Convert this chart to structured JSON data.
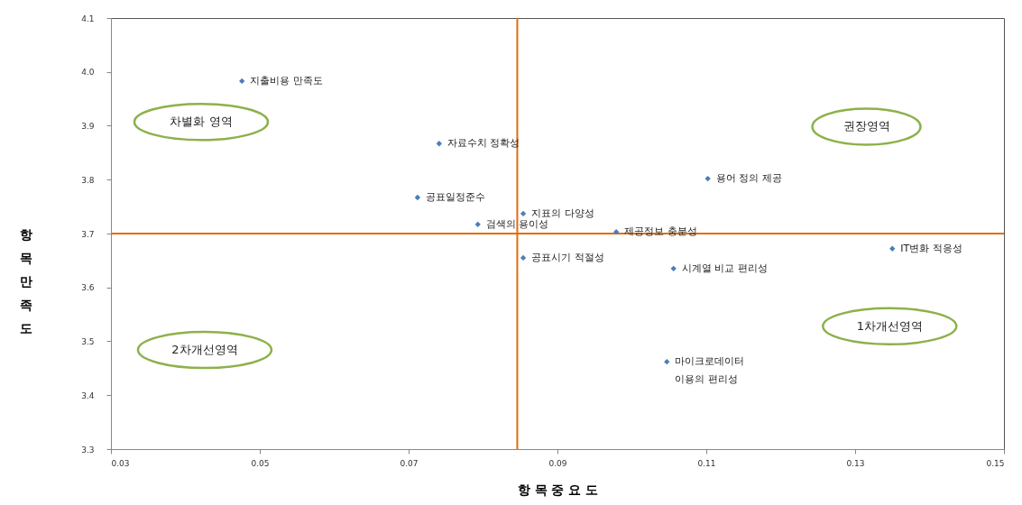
{
  "chart_data": {
    "type": "scatter",
    "xlabel": "항 목 중 요 도",
    "ylabel": "항목만족도",
    "xlim": [
      0.03,
      0.15
    ],
    "xticks": [
      0.03,
      0.05,
      0.07,
      0.09,
      0.11,
      0.13,
      0.15
    ],
    "ylim": [
      3.3,
      4.1
    ],
    "yticks": [
      3.3,
      3.4,
      3.5,
      3.6,
      3.7,
      3.8,
      3.9,
      {
        "value": 4,
        "label": "4.0"
      },
      4.1
    ],
    "grid": false,
    "marker": "diamond",
    "series": [
      {
        "name": "지출비용 만족도",
        "color": "#4a7ebb",
        "x": [
          0.0476
        ],
        "values": [
          3.983
        ]
      },
      {
        "name": "자료수치 정확성",
        "color": "#4a7ebb",
        "x": [
          0.0741
        ],
        "values": [
          3.867
        ]
      },
      {
        "name": "용어 정의 제공",
        "color": "#4a7ebb",
        "x": [
          0.1102
        ],
        "values": [
          3.802
        ]
      },
      {
        "name": "공표일정준수",
        "color": "#4a7ebb",
        "x": [
          0.0712
        ],
        "values": [
          3.767
        ]
      },
      {
        "name": "지표의 다양성",
        "color": "#4a7ebb",
        "x": [
          0.0854
        ],
        "values": [
          3.737
        ]
      },
      {
        "name": "검색의 용이성",
        "color": "#4a7ebb",
        "x": [
          0.0793
        ],
        "values": [
          3.717
        ]
      },
      {
        "name": "제공정보 충분성",
        "color": "#4a7ebb",
        "x": [
          0.0979
        ],
        "values": [
          3.703
        ]
      },
      {
        "name": "IT변화 적응성",
        "color": "#4a7ebb",
        "x": [
          0.135
        ],
        "values": [
          3.672
        ]
      },
      {
        "name": "공표시기 적절성",
        "color": "#4a7ebb",
        "x": [
          0.0854
        ],
        "values": [
          3.655
        ]
      },
      {
        "name": "시계열 비교 편리성",
        "color": "#4a7ebb",
        "x": [
          0.1056
        ],
        "values": [
          3.635
        ]
      },
      {
        "name": "마이크로데이터\n이용의 편리성",
        "color": "#4a7ebb",
        "x": [
          0.1047
        ],
        "values": [
          3.462
        ]
      }
    ],
    "ref_lines": [
      {
        "axis": "x",
        "value": 0.0846,
        "color": "#e46c0a"
      },
      {
        "axis": "y",
        "value": 3.7,
        "color": "#e46c0a"
      }
    ],
    "annotations": [
      "차별화 영역",
      "권장영역",
      "1차개선영역",
      "2차개선영역"
    ]
  }
}
